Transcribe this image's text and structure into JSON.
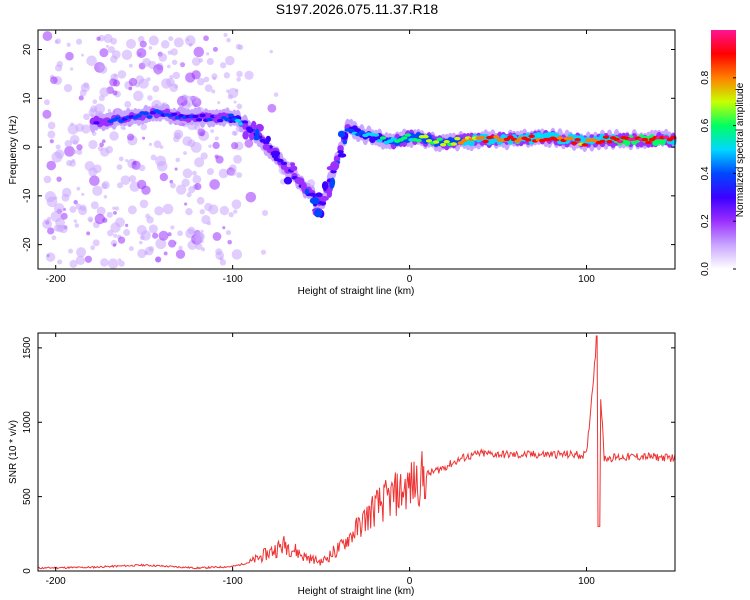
{
  "title": "S197.2026.075.11.37.R18",
  "chart_data": [
    {
      "type": "heatmap",
      "name": "spectrogram",
      "xlabel": "Height of straight line (km)",
      "ylabel": "Frequency (Hz)",
      "xlim": [
        -210,
        150
      ],
      "ylim": [
        -25,
        24
      ],
      "xticks": [
        -200,
        -100,
        0,
        100
      ],
      "yticks": [
        -20,
        -10,
        0,
        10,
        20
      ],
      "colorbar": {
        "label": "Normalized spectral amplitude",
        "range": [
          0,
          1
        ],
        "ticks": [
          0.0,
          0.2,
          0.4,
          0.6,
          0.8
        ],
        "tick_labels": [
          "0.0",
          "0.2",
          "0.4",
          "0.6",
          "0.8"
        ],
        "colormap": [
          "#ffffff",
          "#c9a6ff",
          "#9b30ff",
          "#3b00ff",
          "#0048ff",
          "#00d8ff",
          "#00ff60",
          "#c8ff00",
          "#ff7f00",
          "#ff0000",
          "#ff1493"
        ]
      },
      "ridge": [
        {
          "x": -180,
          "y": 5,
          "amp": 0.25
        },
        {
          "x": -170,
          "y": 5.5,
          "amp": 0.3
        },
        {
          "x": -160,
          "y": 6,
          "amp": 0.35
        },
        {
          "x": -150,
          "y": 6.5,
          "amp": 0.4
        },
        {
          "x": -140,
          "y": 7,
          "amp": 0.35
        },
        {
          "x": -130,
          "y": 6.5,
          "amp": 0.35
        },
        {
          "x": -120,
          "y": 6,
          "amp": 0.35
        },
        {
          "x": -110,
          "y": 6,
          "amp": 0.3
        },
        {
          "x": -100,
          "y": 6,
          "amp": 0.45
        },
        {
          "x": -90,
          "y": 4,
          "amp": 0.35
        },
        {
          "x": -80,
          "y": 0,
          "amp": 0.3
        },
        {
          "x": -70,
          "y": -4,
          "amp": 0.3
        },
        {
          "x": -60,
          "y": -8,
          "amp": 0.3
        },
        {
          "x": -50,
          "y": -12,
          "amp": 0.25
        },
        {
          "x": -45,
          "y": -7,
          "amp": 0.3
        },
        {
          "x": -35,
          "y": 4,
          "amp": 0.4
        },
        {
          "x": -30,
          "y": 3,
          "amp": 0.45
        },
        {
          "x": -20,
          "y": 2,
          "amp": 0.5
        },
        {
          "x": -10,
          "y": 1,
          "amp": 0.6
        },
        {
          "x": 0,
          "y": 2,
          "amp": 0.6
        },
        {
          "x": 20,
          "y": 1,
          "amp": 0.7
        },
        {
          "x": 40,
          "y": 1.5,
          "amp": 0.8
        },
        {
          "x": 60,
          "y": 1.5,
          "amp": 0.85
        },
        {
          "x": 80,
          "y": 2,
          "amp": 0.9
        },
        {
          "x": 100,
          "y": 1,
          "amp": 0.8
        },
        {
          "x": 110,
          "y": 1.5,
          "amp": 0.9
        },
        {
          "x": 130,
          "y": 1.5,
          "amp": 0.95
        },
        {
          "x": 150,
          "y": 1.5,
          "amp": 0.9
        }
      ]
    },
    {
      "type": "line",
      "name": "snr",
      "xlabel": "Height of straight line (km)",
      "ylabel": "SNR (10 * v/v)",
      "xlim": [
        -210,
        150
      ],
      "ylim": [
        0,
        1600
      ],
      "xticks": [
        -200,
        -100,
        0,
        100
      ],
      "yticks": [
        0,
        500,
        1000,
        1500
      ],
      "color": "#ee3333",
      "x": [
        -210,
        -180,
        -150,
        -120,
        -100,
        -90,
        -80,
        -70,
        -60,
        -50,
        -40,
        -30,
        -20,
        -10,
        0,
        10,
        20,
        30,
        40,
        60,
        80,
        100,
        106,
        110,
        130,
        150
      ],
      "y": [
        20,
        25,
        40,
        20,
        30,
        60,
        120,
        180,
        100,
        60,
        150,
        280,
        420,
        500,
        570,
        650,
        700,
        760,
        790,
        780,
        785,
        780,
        1580,
        760,
        770,
        760
      ]
    }
  ]
}
